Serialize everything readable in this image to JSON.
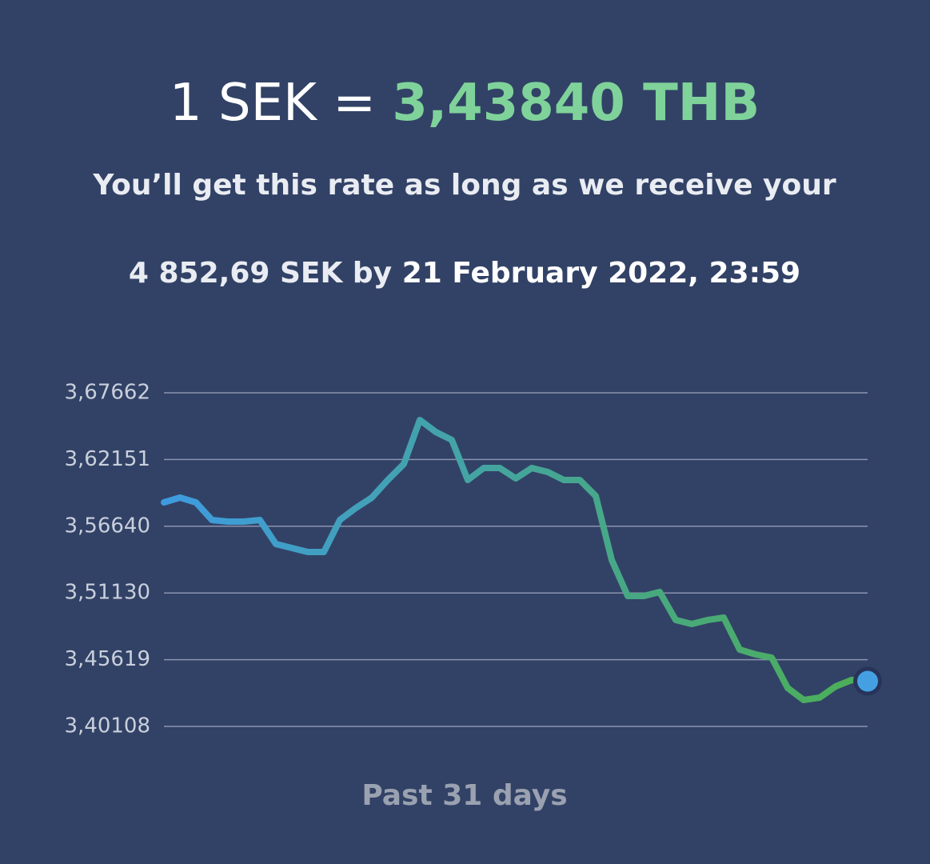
{
  "header": {
    "base": "1 SEK =",
    "rate": "3,43840 THB",
    "note": "You’ll get this rate as long as we receive your",
    "amount": "4 852,69 SEK by",
    "deadline": "21 February 2022, 23:59"
  },
  "chart_data": {
    "type": "line",
    "x_label": "Past 31 days",
    "values": [
      3.5861,
      3.59007,
      3.5861,
      3.57157,
      3.57024,
      3.57024,
      3.57157,
      3.55174,
      3.54844,
      3.54513,
      3.54513,
      3.57157,
      3.58148,
      3.59007,
      3.60461,
      3.61782,
      3.65417,
      3.64425,
      3.63765,
      3.60461,
      3.61452,
      3.61452,
      3.60593,
      3.61452,
      3.61121,
      3.60461,
      3.60461,
      3.59139,
      3.53853,
      3.50879,
      3.50879,
      3.51209,
      3.48897,
      3.48566,
      3.48897,
      3.49095,
      3.46452,
      3.46055,
      3.45791,
      3.4328,
      3.42289,
      3.42487,
      3.43412,
      3.43941,
      3.4384
    ],
    "colors": [
      "#3e9be0",
      "#4caf55"
    ],
    "marker_color": "#45a0e2",
    "ylim": [
      3.40108,
      3.67662
    ],
    "yticks": [
      {
        "value": 3.40108,
        "label": "3,40108"
      },
      {
        "value": 3.45619,
        "label": "3,45619"
      },
      {
        "value": 3.5113,
        "label": "3,51130"
      },
      {
        "value": 3.5664,
        "label": "3,56640"
      },
      {
        "value": 3.62151,
        "label": "3,62151"
      },
      {
        "value": 3.67662,
        "label": "3,67662"
      }
    ],
    "grid": true
  }
}
